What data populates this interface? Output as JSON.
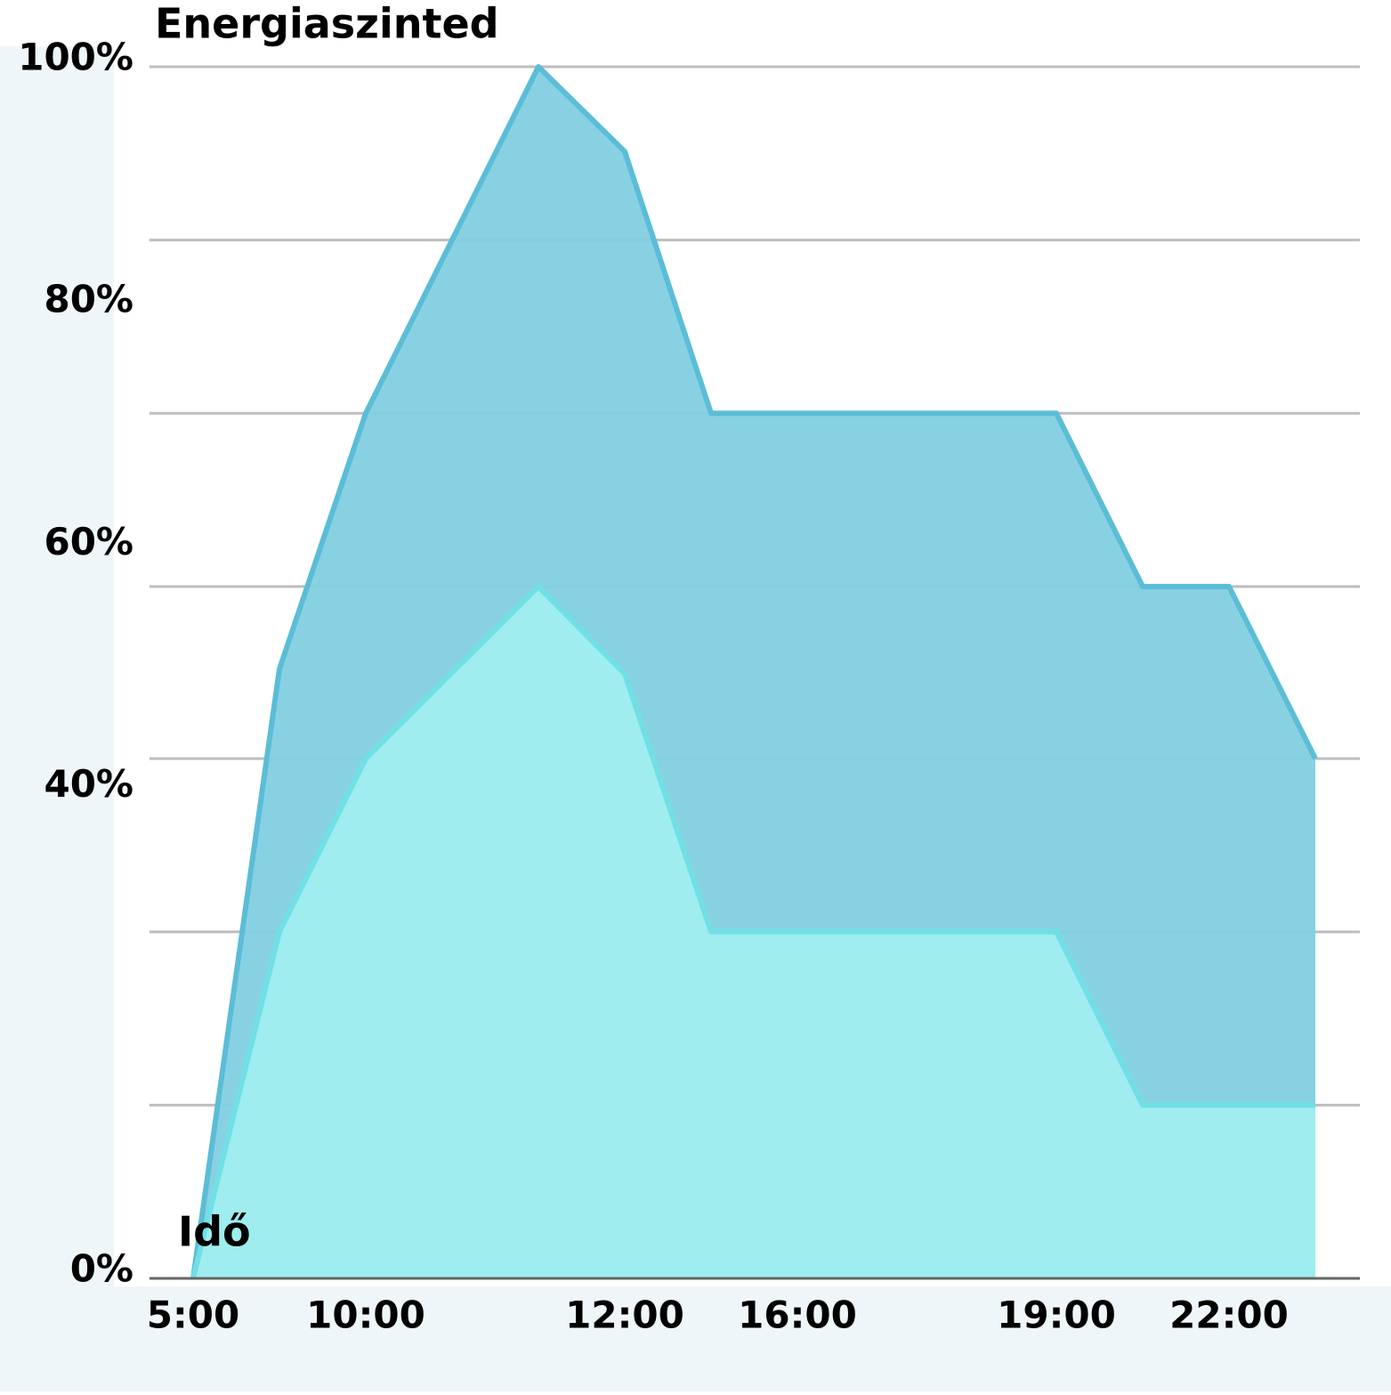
{
  "chart_data": {
    "type": "area",
    "title": "Energiaszinted",
    "x_label": "Idő",
    "categories": [
      "5:00",
      null,
      "10:00",
      null,
      null,
      "12:00",
      null,
      "16:00",
      null,
      null,
      "19:00",
      null,
      "22:00",
      null
    ],
    "series": [
      {
        "color": "#82cfe2",
        "line_color": "#5bbdd6",
        "values": [
          0,
          50.3,
          71.4,
          85.7,
          100,
          93.0,
          71.4,
          71.4,
          71.4,
          71.4,
          71.4,
          57.1,
          57.1,
          42.9
        ]
      },
      {
        "color": "#a0eeee",
        "line_color": "#70e0e6",
        "values": [
          0,
          28.6,
          42.9,
          50.0,
          57.1,
          49.9,
          28.6,
          28.6,
          28.6,
          28.6,
          28.6,
          14.3,
          14.3,
          14.3
        ]
      }
    ],
    "ylim": [
      0,
      100
    ],
    "yticks": [
      {
        "value": 100,
        "label": "100%"
      },
      {
        "value": 80,
        "label": "80%"
      },
      {
        "value": 60,
        "label": "60%"
      },
      {
        "value": 40,
        "label": "40%"
      },
      {
        "value": 0,
        "label": "0%"
      }
    ],
    "grid_lines": [
      0,
      14.3,
      28.6,
      42.9,
      57.1,
      71.4,
      85.7,
      100
    ],
    "grid": true
  }
}
